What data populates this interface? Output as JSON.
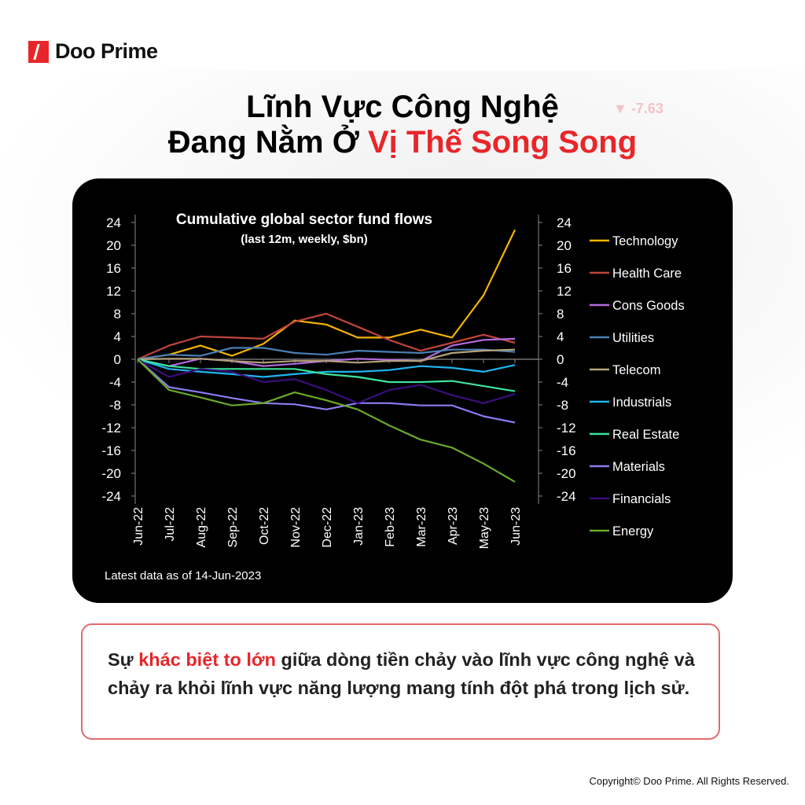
{
  "brand": {
    "name": "Doo Prime"
  },
  "title": {
    "line1": "Lĩnh Vực Công Nghệ",
    "line2_prefix": "Đang Nằm Ở ",
    "line2_highlight": "Vị Thế Song Song"
  },
  "background_ticker": "▼ -7.63",
  "chart_data": {
    "type": "line",
    "title": "Cumulative global sector fund flows",
    "subtitle": "(last 12m, weekly, $bn)",
    "footnote": "Latest data as of 14-Jun-2023",
    "x": [
      "Jun-22",
      "Jul-22",
      "Aug-22",
      "Sep-22",
      "Oct-22",
      "Nov-22",
      "Dec-22",
      "Jan-23",
      "Feb-23",
      "Mar-23",
      "Apr-23",
      "May-23",
      "Jun-23"
    ],
    "ylim": [
      -24,
      24
    ],
    "yticks": [
      24,
      20,
      16,
      12,
      8,
      4,
      0,
      -4,
      -8,
      -12,
      -16,
      -20,
      -24
    ],
    "legend": "right",
    "grid": false,
    "series": [
      {
        "name": "Technology",
        "color": "#f5b400",
        "values": [
          0,
          0.8,
          2.4,
          0.6,
          2.7,
          6.8,
          6.1,
          3.8,
          3.8,
          5.2,
          3.8,
          11.2,
          22.7
        ]
      },
      {
        "name": "Health Care",
        "color": "#c0453d",
        "values": [
          0,
          2.4,
          4.0,
          3.8,
          3.6,
          6.6,
          8.0,
          5.7,
          3.4,
          1.5,
          2.9,
          4.3,
          2.9
        ]
      },
      {
        "name": "Cons Goods",
        "color": "#b36be0",
        "values": [
          0,
          -1.2,
          0.1,
          -0.3,
          -1.2,
          -0.8,
          -0.3,
          0.1,
          -0.1,
          -0.3,
          2.4,
          3.4,
          3.6
        ]
      },
      {
        "name": "Utilities",
        "color": "#4a7fb5",
        "values": [
          0,
          0.8,
          0.6,
          2.0,
          2.0,
          1.1,
          0.8,
          1.5,
          1.3,
          1.1,
          1.7,
          1.7,
          1.3
        ]
      },
      {
        "name": "Telecom",
        "color": "#b5a27a",
        "values": [
          0,
          0.1,
          0.1,
          -0.3,
          -0.6,
          -0.3,
          -0.3,
          -0.6,
          -0.3,
          -0.3,
          1.1,
          1.5,
          1.7
        ]
      },
      {
        "name": "Industrials",
        "color": "#1fb5ef",
        "values": [
          0,
          -1.7,
          -2.2,
          -2.6,
          -3.1,
          -2.6,
          -2.2,
          -2.2,
          -1.9,
          -1.2,
          -1.5,
          -2.2,
          -1.0
        ]
      },
      {
        "name": "Real Estate",
        "color": "#3de39a",
        "values": [
          0,
          -1.2,
          -1.7,
          -1.7,
          -1.7,
          -1.7,
          -2.6,
          -3.1,
          -4.0,
          -4.0,
          -3.8,
          -4.7,
          -5.6
        ]
      },
      {
        "name": "Materials",
        "color": "#8a7cf0",
        "values": [
          0,
          -4.9,
          -5.8,
          -6.8,
          -7.7,
          -7.9,
          -8.8,
          -7.7,
          -7.7,
          -8.1,
          -8.1,
          -10.0,
          -11.1
        ]
      },
      {
        "name": "Financials",
        "color": "#3a0d7a",
        "values": [
          0,
          -3.1,
          -1.7,
          -2.2,
          -4.0,
          -3.5,
          -5.4,
          -7.7,
          -5.4,
          -4.5,
          -6.3,
          -7.7,
          -6.1
        ]
      },
      {
        "name": "Energy",
        "color": "#6aaa2a",
        "values": [
          0,
          -5.4,
          -6.7,
          -8.1,
          -7.7,
          -5.8,
          -7.2,
          -8.8,
          -11.6,
          -14.1,
          -15.5,
          -18.3,
          -21.5
        ]
      }
    ]
  },
  "note": {
    "prefix": "Sự ",
    "highlight": "khác biệt to lớn",
    "rest": " giữa dòng tiền chảy vào lĩnh vực công nghệ và chảy ra khỏi lĩnh vực năng lượng mang tính đột phá trong lịch sử."
  },
  "footer": {
    "copyright": "Copyright© Doo Prime. All Rights Reserved."
  },
  "colors": {
    "brand_red": "#e8262a",
    "note_border": "#e46a6a",
    "chart_bg": "#000000"
  }
}
